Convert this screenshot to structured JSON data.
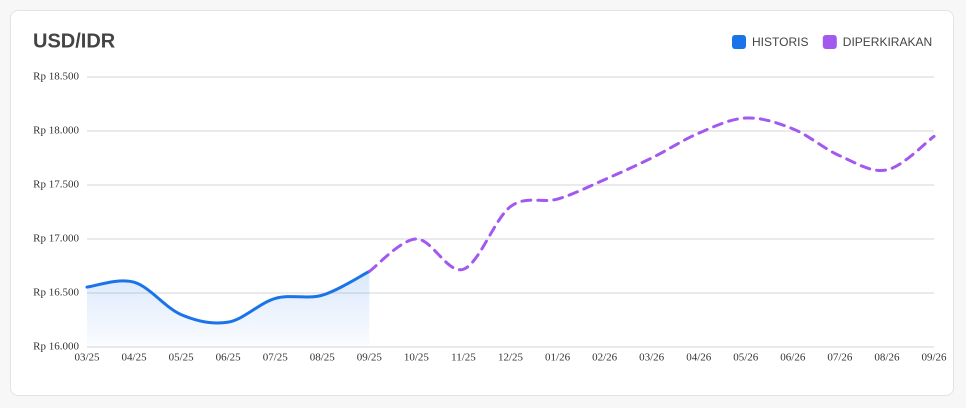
{
  "chart_data": {
    "type": "line",
    "title": "USD/IDR",
    "categories": [
      "03/25",
      "04/25",
      "05/25",
      "06/25",
      "07/25",
      "08/25",
      "09/25",
      "10/25",
      "11/25",
      "12/25",
      "01/26",
      "02/26",
      "03/26",
      "04/26",
      "05/26",
      "06/26",
      "07/26",
      "08/26",
      "09/26"
    ],
    "series": [
      {
        "name": "HISTORIS",
        "color": "#1a73e8",
        "dashed": false,
        "area": true,
        "values": [
          16555,
          16600,
          16300,
          16230,
          16450,
          16480,
          16700,
          null,
          null,
          null,
          null,
          null,
          null,
          null,
          null,
          null,
          null,
          null,
          null
        ]
      },
      {
        "name": "DIPERKIRAKAN",
        "color": "#a259f0",
        "dashed": true,
        "area": false,
        "values": [
          null,
          null,
          null,
          null,
          null,
          null,
          16700,
          17000,
          16720,
          17300,
          17370,
          17550,
          17750,
          17980,
          18120,
          18020,
          17770,
          17640,
          17950
        ]
      }
    ],
    "ylim": [
      16000,
      18500
    ],
    "yticks": [
      {
        "value": 16000,
        "label": "Rp 16.000"
      },
      {
        "value": 16500,
        "label": "Rp 16.500"
      },
      {
        "value": 17000,
        "label": "Rp 17.000"
      },
      {
        "value": 17500,
        "label": "Rp 17.500"
      },
      {
        "value": 18000,
        "label": "Rp 18.000"
      },
      {
        "value": 18500,
        "label": "Rp 18.500"
      }
    ],
    "grid": true,
    "legend": "top-right"
  }
}
